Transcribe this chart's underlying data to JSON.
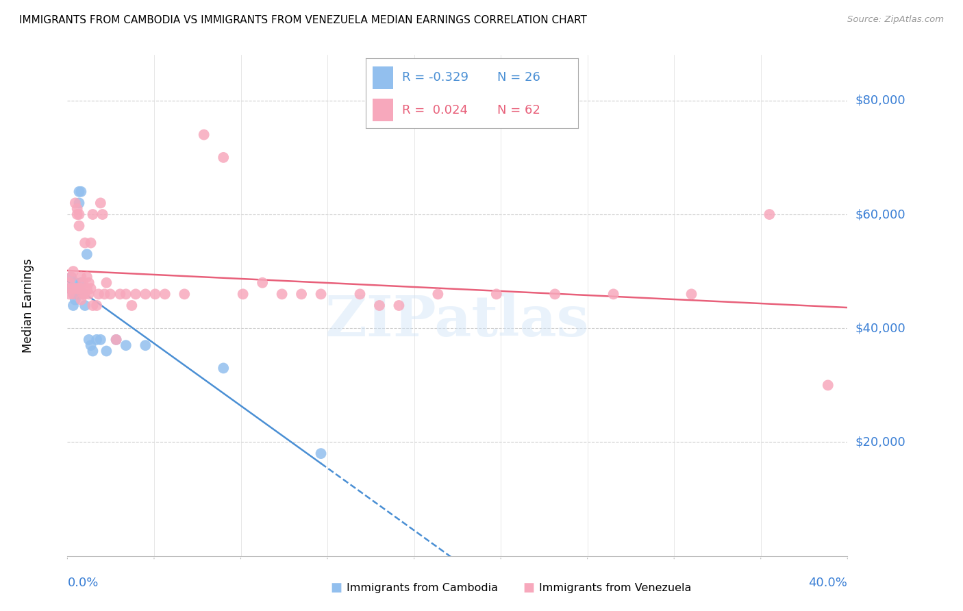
{
  "title": "IMMIGRANTS FROM CAMBODIA VS IMMIGRANTS FROM VENEZUELA MEDIAN EARNINGS CORRELATION CHART",
  "source_text": "Source: ZipAtlas.com",
  "ylabel": "Median Earnings",
  "ytick_labels": [
    "$20,000",
    "$40,000",
    "$60,000",
    "$80,000"
  ],
  "ytick_values": [
    20000,
    40000,
    60000,
    80000
  ],
  "xmin": 0.0,
  "xmax": 0.4,
  "ymin": 0,
  "ymax": 88000,
  "watermark": "ZIPatlas",
  "cambodia_color": "#92bfee",
  "venezuela_color": "#f7a8bc",
  "cambodia_line_color": "#4a8fd4",
  "venezuela_line_color": "#e8607a",
  "cambodia_R": -0.329,
  "cambodia_N": 26,
  "venezuela_R": 0.024,
  "venezuela_N": 62,
  "legend_R_cam": "R = -0.329",
  "legend_N_cam": "N = 26",
  "legend_R_ven": "R =  0.024",
  "legend_N_ven": "N = 62",
  "cam_x": [
    0.001,
    0.002,
    0.003,
    0.003,
    0.004,
    0.004,
    0.005,
    0.005,
    0.006,
    0.006,
    0.007,
    0.007,
    0.008,
    0.009,
    0.01,
    0.011,
    0.012,
    0.013,
    0.015,
    0.017,
    0.02,
    0.025,
    0.03,
    0.04,
    0.08,
    0.13
  ],
  "cam_y": [
    47000,
    49000,
    44000,
    46000,
    48000,
    45000,
    47000,
    46000,
    64000,
    62000,
    64000,
    48000,
    46000,
    44000,
    53000,
    38000,
    37000,
    36000,
    38000,
    38000,
    36000,
    38000,
    37000,
    37000,
    33000,
    18000
  ],
  "ven_x": [
    0.001,
    0.001,
    0.002,
    0.002,
    0.003,
    0.003,
    0.004,
    0.004,
    0.005,
    0.005,
    0.005,
    0.006,
    0.006,
    0.006,
    0.007,
    0.007,
    0.007,
    0.008,
    0.008,
    0.009,
    0.009,
    0.01,
    0.01,
    0.011,
    0.011,
    0.012,
    0.012,
    0.013,
    0.013,
    0.015,
    0.016,
    0.017,
    0.018,
    0.019,
    0.02,
    0.022,
    0.025,
    0.027,
    0.03,
    0.033,
    0.035,
    0.04,
    0.045,
    0.05,
    0.06,
    0.07,
    0.08,
    0.09,
    0.1,
    0.11,
    0.12,
    0.13,
    0.15,
    0.16,
    0.17,
    0.19,
    0.22,
    0.25,
    0.28,
    0.32,
    0.36,
    0.39
  ],
  "ven_y": [
    46000,
    48000,
    47000,
    49000,
    46000,
    50000,
    47000,
    62000,
    61000,
    47000,
    60000,
    47000,
    58000,
    60000,
    45000,
    47000,
    49000,
    46000,
    48000,
    55000,
    46000,
    47000,
    49000,
    46000,
    48000,
    47000,
    55000,
    44000,
    60000,
    44000,
    46000,
    62000,
    60000,
    46000,
    48000,
    46000,
    38000,
    46000,
    46000,
    44000,
    46000,
    46000,
    46000,
    46000,
    46000,
    74000,
    70000,
    46000,
    48000,
    46000,
    46000,
    46000,
    46000,
    44000,
    44000,
    46000,
    46000,
    46000,
    46000,
    46000,
    60000,
    30000
  ]
}
